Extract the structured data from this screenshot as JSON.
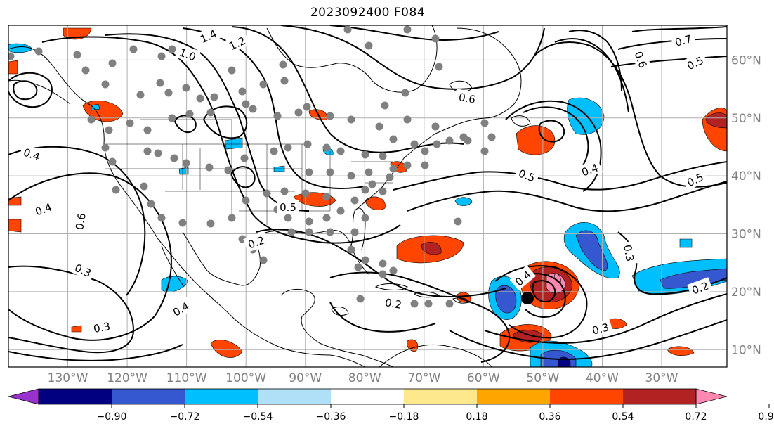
{
  "title": "2023092400 F084",
  "map": {
    "lon_range": [
      -140,
      -19
    ],
    "lat_range": [
      7,
      66
    ],
    "lon_labels": [
      "130°W",
      "120°W",
      "110°W",
      "100°W",
      "90°W",
      "80°W",
      "70°W",
      "60°W",
      "50°W",
      "40°W",
      "30°W"
    ],
    "lat_labels": [
      "10°N",
      "20°N",
      "30°N",
      "40°N",
      "50°N",
      "60°N"
    ],
    "contour_labels": [
      "1.4",
      "1.2",
      "1.0",
      "0.7",
      "0.6",
      "0.5",
      "0.4",
      "0.3",
      "0.2"
    ],
    "colors": {
      "coast": "#000000",
      "contour": "#000000",
      "station_dot": "#808080",
      "storm_center": "#000000",
      "grid": "#b0b0b0"
    }
  },
  "colorbar": {
    "ticks": [
      "−0.90",
      "−0.72",
      "−0.54",
      "−0.36",
      "−0.18",
      "0.18",
      "0.36",
      "0.54",
      "0.72",
      "0.90"
    ],
    "colors": [
      "#9932cc",
      "#000080",
      "#3558d0",
      "#00bfff",
      "#b0e0f8",
      "#ffffff",
      "#fde98c",
      "#ffa500",
      "#ff4500",
      "#b22222",
      "#ff88b0"
    ]
  }
}
